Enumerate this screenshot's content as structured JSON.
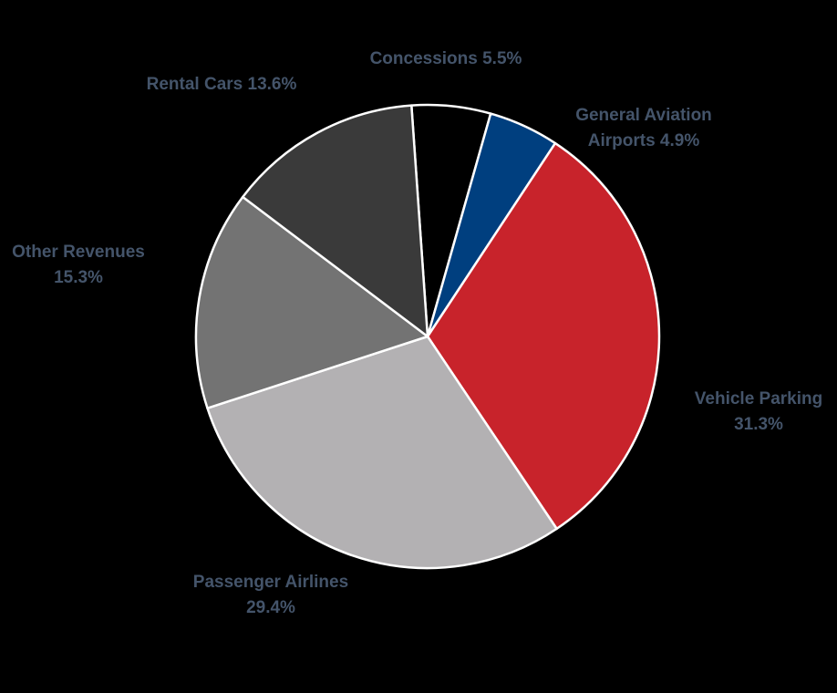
{
  "chart_data": {
    "type": "pie",
    "title": "",
    "label_color": "#44546A",
    "slice_border_color": "#FFFFFF",
    "start_angle_deg": -4,
    "direction": "clockwise",
    "slices": [
      {
        "category": "Concessions",
        "value": 5.5,
        "value_label": "5.5%",
        "color": "#000000",
        "label_lines": [
          "Concessions 5.5%"
        ]
      },
      {
        "category": "General Aviation Airports",
        "value": 4.9,
        "value_label": "4.9%",
        "color": "#003F7F",
        "label_lines": [
          "General Aviation",
          "Airports 4.9%"
        ]
      },
      {
        "category": "Vehicle Parking",
        "value": 31.3,
        "value_label": "31.3%",
        "color": "#C8232B",
        "label_lines": [
          "Vehicle Parking",
          "31.3%"
        ]
      },
      {
        "category": "Passenger Airlines",
        "value": 29.4,
        "value_label": "29.4%",
        "color": "#B3B1B3",
        "label_lines": [
          "Passenger Airlines",
          "29.4%"
        ]
      },
      {
        "category": "Other Revenues",
        "value": 15.3,
        "value_label": "15.3%",
        "color": "#737373",
        "label_lines": [
          "Other Revenues",
          "15.3%"
        ]
      },
      {
        "category": "Rental Cars",
        "value": 13.6,
        "value_label": "13.6%",
        "color": "#3A3A3A",
        "label_lines": [
          "Rental Cars 13.6%"
        ]
      }
    ]
  }
}
